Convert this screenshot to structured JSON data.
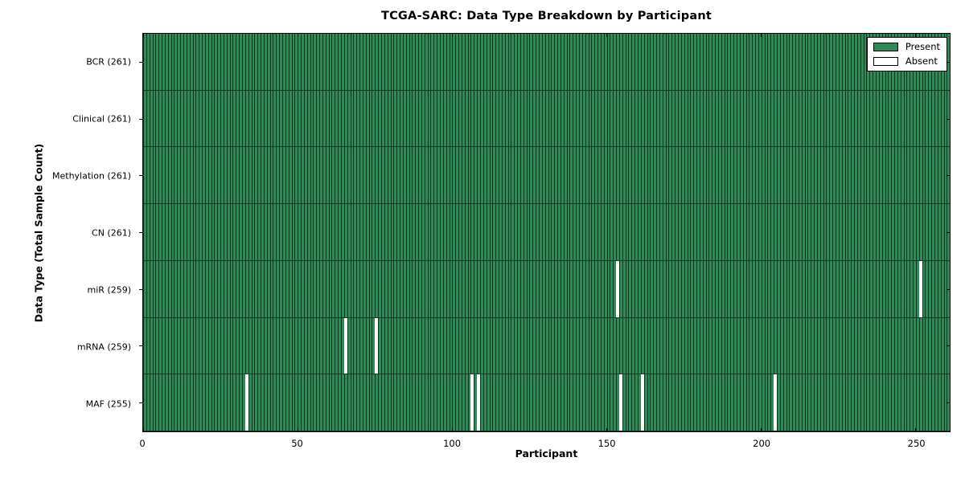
{
  "figure": {
    "title": "TCGA-SARC: Data Type Breakdown by Participant"
  },
  "chart_data": {
    "type": "heatmap",
    "title": "TCGA-SARC: Data Type Breakdown by Participant",
    "xlabel": "Participant",
    "ylabel": "Data Type (Total Sample Count)",
    "xlim": [
      0,
      261
    ],
    "x_ticks": [
      0,
      50,
      100,
      150,
      200,
      250
    ],
    "n_participants": 261,
    "grid": false,
    "legend": {
      "position": "upper right",
      "entries": [
        {
          "label": "Present",
          "color": "#2e8b57"
        },
        {
          "label": "Absent",
          "color": "#ffffff"
        }
      ]
    },
    "colors": {
      "present_fill": "#2e8b57",
      "present_edge": "#10341f",
      "absent_fill": "#ffffff",
      "row_divider": "#0e3a22",
      "spine": "#000000",
      "background": "#ffffff"
    },
    "rows": [
      {
        "name": "BCR",
        "label": "BCR (261)",
        "total_samples": 261,
        "absent_participants": []
      },
      {
        "name": "Clinical",
        "label": "Clinical (261)",
        "total_samples": 261,
        "absent_participants": []
      },
      {
        "name": "Methylation",
        "label": "Methylation (261)",
        "total_samples": 261,
        "absent_participants": []
      },
      {
        "name": "CN",
        "label": "CN (261)",
        "total_samples": 261,
        "absent_participants": []
      },
      {
        "name": "miR",
        "label": "miR (259)",
        "total_samples": 259,
        "absent_participants": [
          153,
          251
        ]
      },
      {
        "name": "mRNA",
        "label": "mRNA (259)",
        "total_samples": 259,
        "absent_participants": [
          65,
          75
        ]
      },
      {
        "name": "MAF",
        "label": "MAF (255)",
        "total_samples": 255,
        "absent_participants": [
          33,
          106,
          108,
          154,
          161,
          204
        ]
      }
    ]
  }
}
